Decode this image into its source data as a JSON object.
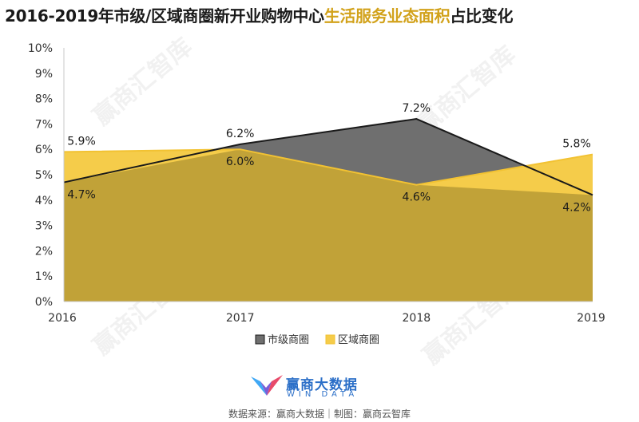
{
  "title_main": "2016-2019年市级/区域商圈新开业购物中心",
  "title_highlight": "生活服务业态面积",
  "title_end": "占比变化",
  "watermark": "赢商汇智库",
  "logo": {
    "name_cn": "赢商大数据",
    "name_en": "WIN DATA"
  },
  "source": "数据来源：赢商大数据｜制图：赢商云智库",
  "colors": {
    "city": "#6f6f6f",
    "city_line": "#1a1a1a",
    "district": "#f5cc4a",
    "district_line": "#f2c232",
    "overlap": "#c1a238",
    "highlight": "#d2a21b"
  },
  "chart_data": {
    "type": "area",
    "title": "2016-2019年市级/区域商圈新开业购物中心生活服务业态面积占比变化",
    "x": [
      "2016",
      "2017",
      "2018",
      "2019"
    ],
    "ylim": [
      0,
      10
    ],
    "yticks": [
      "0%",
      "1%",
      "2%",
      "3%",
      "4%",
      "5%",
      "6%",
      "7%",
      "8%",
      "9%",
      "10%"
    ],
    "grid": false,
    "legend_position": "bottom",
    "series": [
      {
        "name": "市级商圈",
        "values": [
          4.7,
          6.2,
          7.2,
          4.2
        ],
        "labels": [
          "4.7%",
          "6.2%",
          "7.2%",
          "4.2%"
        ]
      },
      {
        "name": "区域商圈",
        "values": [
          5.9,
          6.0,
          4.6,
          5.8
        ],
        "labels": [
          "5.9%",
          "6.0%",
          "4.6%",
          "5.8%"
        ]
      }
    ]
  }
}
